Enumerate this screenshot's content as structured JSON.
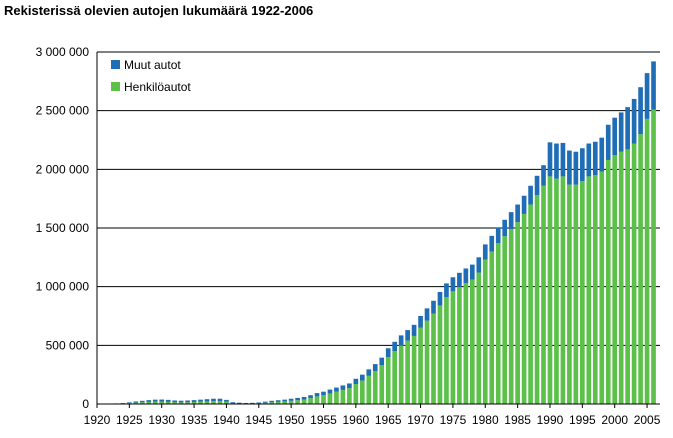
{
  "chart_data": {
    "type": "bar",
    "stacked": true,
    "title": "Rekisterissä olevien autojen lukumäärä 1922-2006",
    "xlabel": "",
    "ylabel": "",
    "ylim": [
      0,
      3000000
    ],
    "y_ticks": [
      0,
      500000,
      1000000,
      1500000,
      2000000,
      2500000,
      3000000
    ],
    "y_tick_labels": [
      "0",
      "500 000",
      "1 000 000",
      "1 500 000",
      "2 000 000",
      "2 500 000",
      "3 000 000"
    ],
    "x_ticks": [
      1920,
      1925,
      1930,
      1935,
      1940,
      1945,
      1950,
      1955,
      1960,
      1965,
      1970,
      1975,
      1980,
      1985,
      1990,
      1995,
      2000,
      2005
    ],
    "x_tick_labels": [
      "1920",
      "1925",
      "1930",
      "1935",
      "1940",
      "1945",
      "1950",
      "1955",
      "1960",
      "1965",
      "1970",
      "1975",
      "1980",
      "1985",
      "1990",
      "1995",
      "2000",
      "2005"
    ],
    "x_range": [
      1920,
      2007
    ],
    "legend_position": "top-left",
    "grid": true,
    "categories": [
      1922,
      1923,
      1924,
      1925,
      1926,
      1927,
      1928,
      1929,
      1930,
      1931,
      1932,
      1933,
      1934,
      1935,
      1936,
      1937,
      1938,
      1939,
      1940,
      1941,
      1942,
      1943,
      1944,
      1945,
      1946,
      1947,
      1948,
      1949,
      1950,
      1951,
      1952,
      1953,
      1954,
      1955,
      1956,
      1957,
      1958,
      1959,
      1960,
      1961,
      1962,
      1963,
      1964,
      1965,
      1966,
      1967,
      1968,
      1969,
      1970,
      1971,
      1972,
      1973,
      1974,
      1975,
      1976,
      1977,
      1978,
      1979,
      1980,
      1981,
      1982,
      1983,
      1984,
      1985,
      1986,
      1987,
      1988,
      1989,
      1990,
      1991,
      1992,
      1993,
      1994,
      1995,
      1996,
      1997,
      1998,
      1999,
      2000,
      2001,
      2002,
      2003,
      2004,
      2005,
      2006
    ],
    "series": [
      {
        "name": "Henkilöautot",
        "color": "#5cc04a",
        "values": [
          2000,
          3000,
          5000,
          8000,
          12000,
          15000,
          18000,
          20000,
          20000,
          18000,
          15000,
          14000,
          15000,
          17000,
          20000,
          22000,
          25000,
          25000,
          20000,
          5000,
          3000,
          2000,
          3000,
          5000,
          10000,
          15000,
          18000,
          22000,
          27000,
          32000,
          38000,
          50000,
          65000,
          75000,
          90000,
          105000,
          120000,
          135000,
          170000,
          200000,
          240000,
          280000,
          330000,
          400000,
          450000,
          500000,
          540000,
          580000,
          650000,
          710000,
          770000,
          840000,
          910000,
          960000,
          996000,
          1030000,
          1060000,
          1120000,
          1230000,
          1300000,
          1370000,
          1430000,
          1490000,
          1550000,
          1620000,
          1700000,
          1780000,
          1860000,
          1940000,
          1920000,
          1940000,
          1870000,
          1870000,
          1900000,
          1940000,
          1950000,
          1980000,
          2080000,
          2120000,
          2150000,
          2170000,
          2220000,
          2300000,
          2430000,
          2510000
        ]
      },
      {
        "name": "Muut autot",
        "color": "#1f6db4",
        "values": [
          1000,
          2000,
          3000,
          6000,
          10000,
          12000,
          15000,
          17000,
          18000,
          17000,
          15000,
          14000,
          15000,
          16000,
          17000,
          19000,
          20000,
          20000,
          15000,
          10000,
          8000,
          7000,
          7000,
          8000,
          10000,
          12000,
          14000,
          15000,
          18000,
          20000,
          22000,
          25000,
          28000,
          30000,
          33000,
          35000,
          38000,
          40000,
          45000,
          50000,
          55000,
          60000,
          65000,
          75000,
          80000,
          85000,
          90000,
          95000,
          100000,
          105000,
          110000,
          115000,
          118000,
          120000,
          122000,
          125000,
          128000,
          130000,
          130000,
          133000,
          136000,
          140000,
          145000,
          150000,
          155000,
          160000,
          165000,
          175000,
          290000,
          300000,
          285000,
          290000,
          280000,
          280000,
          280000,
          285000,
          290000,
          300000,
          320000,
          335000,
          360000,
          380000,
          400000,
          390000,
          410000
        ]
      }
    ]
  }
}
